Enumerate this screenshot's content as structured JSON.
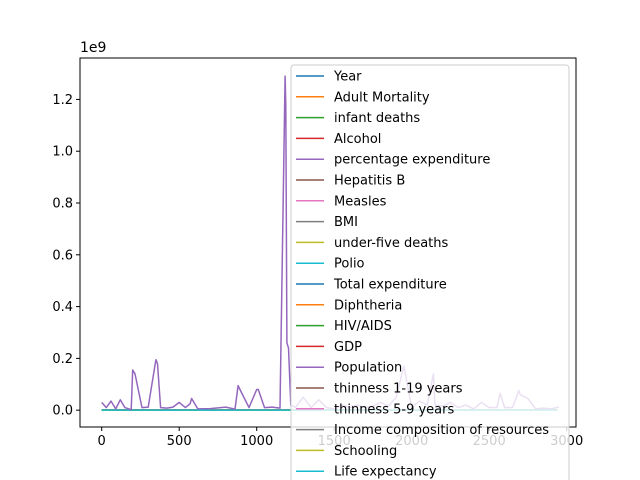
{
  "chart_data": {
    "type": "line",
    "title": "",
    "xlabel": "",
    "ylabel": "",
    "xlim": [
      -140,
      3060
    ],
    "ylim": [
      -0.065,
      1.36
    ],
    "y_scale_label": "1e9",
    "x_ticks": [
      0,
      500,
      1000,
      1500,
      2000,
      2500,
      3000
    ],
    "x_tick_labels": [
      "0",
      "500",
      "1000",
      "1500",
      "2000",
      "2500",
      "3000"
    ],
    "y_ticks": [
      0.0,
      0.2,
      0.4,
      0.6,
      0.8,
      1.0,
      1.2
    ],
    "y_tick_labels": [
      "0.0",
      "0.2",
      "0.4",
      "0.6",
      "0.8",
      "1.0",
      "1.2"
    ],
    "grid": false,
    "legend_position": "center-right",
    "series": [
      {
        "name": "Year",
        "color": "#1f77b4"
      },
      {
        "name": "Adult Mortality",
        "color": "#ff7f0e"
      },
      {
        "name": "infant deaths",
        "color": "#2ca02c"
      },
      {
        "name": "Alcohol",
        "color": "#d62728"
      },
      {
        "name": "percentage expenditure",
        "color": "#9467bd"
      },
      {
        "name": "Hepatitis B",
        "color": "#8c564b"
      },
      {
        "name": "Measles ",
        "color": "#e377c2"
      },
      {
        "name": " BMI ",
        "color": "#7f7f7f"
      },
      {
        "name": "under-five deaths ",
        "color": "#bcbd22"
      },
      {
        "name": "Polio",
        "color": "#17becf"
      },
      {
        "name": "Total expenditure",
        "color": "#1f77b4"
      },
      {
        "name": "Diphtheria ",
        "color": "#ff7f0e"
      },
      {
        "name": " HIV/AIDS",
        "color": "#2ca02c"
      },
      {
        "name": "GDP",
        "color": "#d62728"
      },
      {
        "name": "Population",
        "color": "#9467bd",
        "x": [
          0,
          30,
          60,
          90,
          120,
          150,
          190,
          200,
          215,
          260,
          300,
          350,
          360,
          380,
          420,
          460,
          500,
          540,
          570,
          580,
          620,
          700,
          800,
          860,
          880,
          900,
          950,
          1000,
          1010,
          1050,
          1100,
          1150,
          1183,
          1188,
          1195,
          1205,
          1220,
          1250,
          1300,
          1350,
          1400,
          1450,
          1500,
          1550,
          1600,
          1650,
          1700,
          1750,
          1800,
          1850,
          1900,
          1950,
          2000,
          2050,
          2100,
          2140,
          2150,
          2200,
          2250,
          2300,
          2350,
          2400,
          2450,
          2500,
          2550,
          2570,
          2600,
          2650,
          2690,
          2700,
          2750,
          2800,
          2850,
          2900,
          2950
        ],
        "y": [
          0.03,
          0.01,
          0.035,
          0.005,
          0.04,
          0.01,
          0.002,
          0.155,
          0.14,
          0.01,
          0.012,
          0.195,
          0.18,
          0.01,
          0.008,
          0.012,
          0.03,
          0.01,
          0.025,
          0.045,
          0.005,
          0.006,
          0.012,
          0.004,
          0.095,
          0.07,
          0.01,
          0.08,
          0.08,
          0.01,
          0.012,
          0.008,
          1.29,
          1.18,
          0.26,
          0.24,
          0.02,
          0.01,
          0.05,
          0.01,
          0.04,
          0.01,
          0.005,
          0.02,
          0.01,
          0.02,
          0.01,
          0.015,
          0.03,
          0.015,
          0.05,
          0.17,
          0.01,
          0.035,
          0.02,
          0.14,
          0.02,
          0.015,
          0.03,
          0.01,
          0.02,
          0.005,
          0.03,
          0.01,
          0.01,
          0.065,
          0.01,
          0.01,
          0.075,
          0.06,
          0.045,
          0.005,
          0.008,
          0.005,
          0.012
        ]
      },
      {
        "name": " thinness  1-19 years",
        "color": "#8c564b"
      },
      {
        "name": " thinness 5-9 years",
        "color": "#e377c2"
      },
      {
        "name": "Income composition of resources",
        "color": "#7f7f7f"
      },
      {
        "name": "Schooling",
        "color": "#bcbd22"
      },
      {
        "name": "Life expectancy ",
        "color": "#17becf"
      }
    ]
  }
}
